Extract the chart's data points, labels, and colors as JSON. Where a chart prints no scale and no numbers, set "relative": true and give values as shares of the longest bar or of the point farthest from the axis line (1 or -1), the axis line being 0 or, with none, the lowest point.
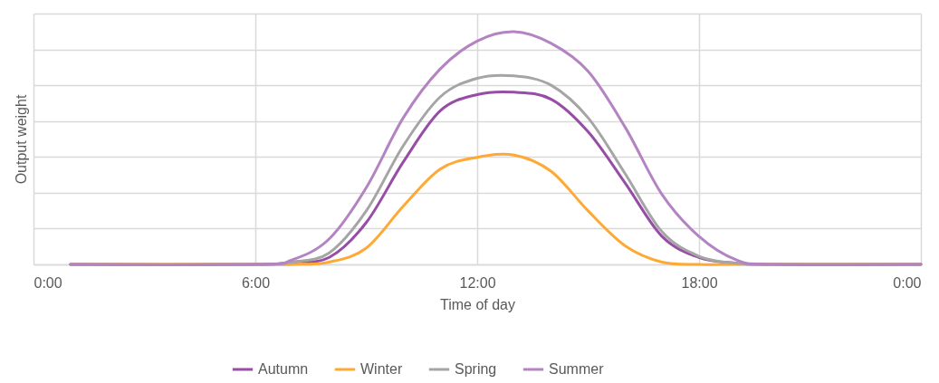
{
  "chart_data": {
    "type": "line",
    "relative": true,
    "xlabel": "Time of day",
    "ylabel": "Output weight",
    "x": [
      1,
      6,
      7,
      8,
      9,
      10,
      11,
      12,
      13,
      14,
      15,
      16,
      17,
      18,
      19,
      20,
      24
    ],
    "xlim": [
      0,
      24
    ],
    "xticks": [
      {
        "value": 0,
        "label": "0:00"
      },
      {
        "value": 6,
        "label": "6:00"
      },
      {
        "value": 12,
        "label": "12:00"
      },
      {
        "value": 18,
        "label": "18:00"
      },
      {
        "value": 24,
        "label": "0:00"
      }
    ],
    "grid": true,
    "legend": "bottom",
    "line_style": "solid",
    "series": [
      {
        "name": "Autumn",
        "color": "#974ca6",
        "values": [
          0,
          0,
          0.01,
          0.03,
          0.18,
          0.44,
          0.66,
          0.73,
          0.74,
          0.71,
          0.57,
          0.35,
          0.12,
          0.03,
          0.005,
          0,
          0
        ]
      },
      {
        "name": "Winter",
        "color": "#ffa935",
        "values": [
          0,
          0,
          0,
          0.01,
          0.07,
          0.25,
          0.41,
          0.46,
          0.47,
          0.4,
          0.23,
          0.08,
          0.01,
          0,
          0,
          0,
          0
        ]
      },
      {
        "name": "Spring",
        "color": "#a5a5a5",
        "values": [
          0,
          0,
          0.01,
          0.05,
          0.23,
          0.51,
          0.72,
          0.8,
          0.81,
          0.77,
          0.63,
          0.39,
          0.14,
          0.035,
          0.005,
          0,
          0
        ]
      },
      {
        "name": "Summer",
        "color": "#b383c2",
        "values": [
          0,
          0,
          0.02,
          0.11,
          0.33,
          0.63,
          0.84,
          0.96,
          1,
          0.95,
          0.83,
          0.59,
          0.3,
          0.12,
          0.02,
          0,
          0
        ]
      }
    ]
  }
}
